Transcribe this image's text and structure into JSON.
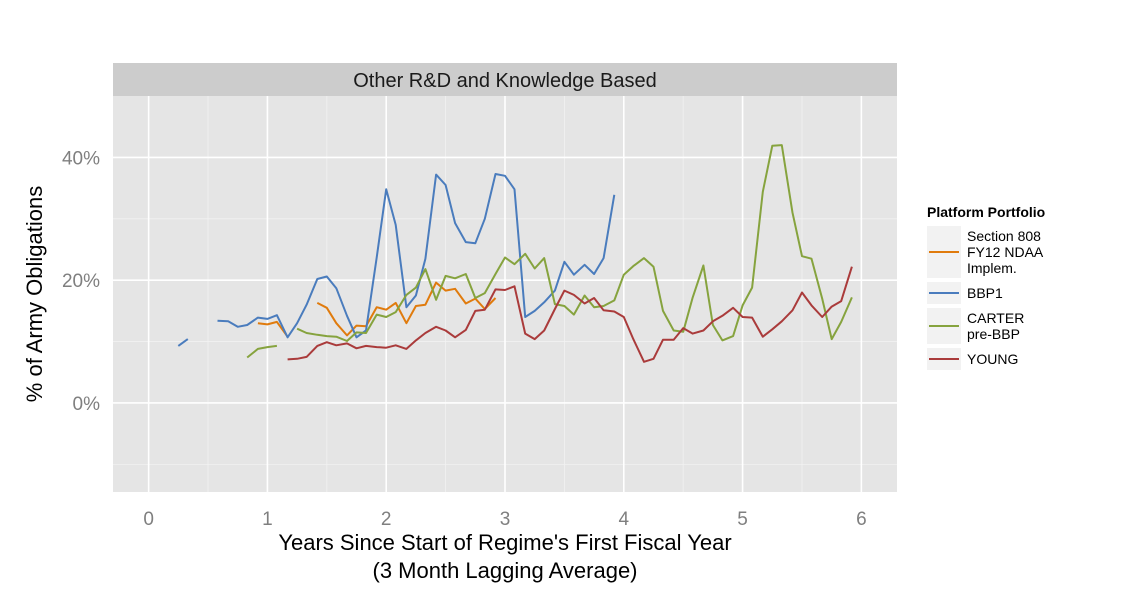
{
  "chart_data": {
    "type": "line",
    "facet_title": "Other R&D and Knowledge Based",
    "xlabel": [
      "Years Since Start of Regime's First Fiscal Year",
      "(3 Month Lagging Average)"
    ],
    "ylabel": "% of Army Obligations",
    "xlim": [
      -0.3,
      6.3
    ],
    "ylim": [
      -0.145,
      0.5
    ],
    "x_ticks": [
      0,
      1,
      2,
      3,
      4,
      5,
      6
    ],
    "x_tick_labels": [
      "0",
      "1",
      "2",
      "3",
      "4",
      "5",
      "6"
    ],
    "y_ticks": [
      0,
      0.2,
      0.4
    ],
    "y_tick_labels": [
      "0%",
      "20%",
      "40%"
    ],
    "grid": true,
    "legend": {
      "title": "Platform Portfolio",
      "placement": "right",
      "entries": [
        {
          "label_lines": [
            "Section 808",
            "FY12 NDAA",
            "Implem."
          ],
          "color": "#e07b0d"
        },
        {
          "label_lines": [
            "BBP1"
          ],
          "color": "#4a7cbd"
        },
        {
          "label_lines": [
            "CARTER",
            "pre-BBP"
          ],
          "color": "#86a33e"
        },
        {
          "label_lines": [
            "YOUNG"
          ],
          "color": "#aa3b3b"
        }
      ]
    },
    "series": [
      {
        "name": "Section 808 FY12 NDAA Implem.",
        "color": "#e07b0d",
        "segments": [
          [
            [
              0.92,
              0.13
            ],
            [
              1.0,
              0.128
            ],
            [
              1.08,
              0.132
            ],
            [
              1.17,
              0.108
            ]
          ],
          [
            [
              1.42,
              0.163
            ],
            [
              1.5,
              0.155
            ],
            [
              1.58,
              0.13
            ],
            [
              1.67,
              0.11
            ],
            [
              1.75,
              0.126
            ],
            [
              1.83,
              0.125
            ],
            [
              1.92,
              0.156
            ],
            [
              2.0,
              0.152
            ],
            [
              2.08,
              0.163
            ],
            [
              2.17,
              0.13
            ],
            [
              2.25,
              0.158
            ],
            [
              2.33,
              0.16
            ],
            [
              2.42,
              0.196
            ],
            [
              2.5,
              0.183
            ],
            [
              2.58,
              0.186
            ],
            [
              2.67,
              0.162
            ],
            [
              2.75,
              0.17
            ],
            [
              2.83,
              0.153
            ],
            [
              2.92,
              0.171
            ]
          ]
        ]
      },
      {
        "name": "BBP1",
        "color": "#4a7cbd",
        "segments": [
          [
            [
              0.25,
              0.093
            ],
            [
              0.33,
              0.104
            ]
          ],
          [
            [
              0.58,
              0.134
            ],
            [
              0.67,
              0.133
            ],
            [
              0.75,
              0.124
            ],
            [
              0.83,
              0.127
            ],
            [
              0.92,
              0.139
            ],
            [
              1.0,
              0.137
            ],
            [
              1.08,
              0.143
            ],
            [
              1.17,
              0.107
            ],
            [
              1.25,
              0.13
            ],
            [
              1.33,
              0.16
            ],
            [
              1.42,
              0.202
            ],
            [
              1.5,
              0.206
            ],
            [
              1.58,
              0.187
            ],
            [
              1.67,
              0.142
            ],
            [
              1.75,
              0.107
            ],
            [
              1.83,
              0.118
            ],
            [
              1.92,
              0.237
            ],
            [
              2.0,
              0.348
            ],
            [
              2.08,
              0.29
            ],
            [
              2.17,
              0.156
            ],
            [
              2.25,
              0.175
            ],
            [
              2.33,
              0.235
            ],
            [
              2.42,
              0.372
            ],
            [
              2.5,
              0.355
            ],
            [
              2.58,
              0.293
            ],
            [
              2.67,
              0.262
            ],
            [
              2.75,
              0.26
            ],
            [
              2.83,
              0.3
            ],
            [
              2.92,
              0.373
            ],
            [
              3.0,
              0.37
            ],
            [
              3.08,
              0.348
            ],
            [
              3.17,
              0.14
            ],
            [
              3.25,
              0.15
            ],
            [
              3.33,
              0.164
            ],
            [
              3.42,
              0.183
            ],
            [
              3.5,
              0.23
            ],
            [
              3.58,
              0.209
            ],
            [
              3.67,
              0.225
            ],
            [
              3.75,
              0.21
            ],
            [
              3.83,
              0.236
            ],
            [
              3.92,
              0.339
            ]
          ]
        ]
      },
      {
        "name": "CARTER pre-BBP",
        "color": "#86a33e",
        "segments": [
          [
            [
              0.83,
              0.074
            ],
            [
              0.92,
              0.088
            ],
            [
              1.0,
              0.091
            ],
            [
              1.08,
              0.093
            ]
          ],
          [
            [
              1.25,
              0.121
            ],
            [
              1.33,
              0.114
            ],
            [
              1.42,
              0.111
            ],
            [
              1.5,
              0.109
            ],
            [
              1.58,
              0.108
            ],
            [
              1.67,
              0.101
            ],
            [
              1.75,
              0.115
            ],
            [
              1.83,
              0.114
            ],
            [
              1.92,
              0.144
            ],
            [
              2.0,
              0.14
            ],
            [
              2.08,
              0.148
            ],
            [
              2.17,
              0.176
            ],
            [
              2.25,
              0.188
            ],
            [
              2.33,
              0.218
            ],
            [
              2.42,
              0.168
            ],
            [
              2.5,
              0.207
            ],
            [
              2.58,
              0.203
            ],
            [
              2.67,
              0.21
            ],
            [
              2.75,
              0.171
            ],
            [
              2.83,
              0.179
            ],
            [
              2.92,
              0.21
            ],
            [
              3.0,
              0.237
            ],
            [
              3.08,
              0.226
            ],
            [
              3.17,
              0.243
            ],
            [
              3.25,
              0.219
            ],
            [
              3.33,
              0.236
            ],
            [
              3.42,
              0.161
            ],
            [
              3.5,
              0.158
            ],
            [
              3.58,
              0.144
            ],
            [
              3.67,
              0.175
            ],
            [
              3.75,
              0.156
            ],
            [
              3.83,
              0.158
            ],
            [
              3.92,
              0.167
            ],
            [
              4.0,
              0.209
            ],
            [
              4.08,
              0.223
            ],
            [
              4.17,
              0.236
            ],
            [
              4.25,
              0.222
            ],
            [
              4.33,
              0.15
            ],
            [
              4.42,
              0.118
            ],
            [
              4.5,
              0.116
            ],
            [
              4.58,
              0.172
            ],
            [
              4.67,
              0.224
            ],
            [
              4.75,
              0.127
            ],
            [
              4.83,
              0.102
            ],
            [
              4.92,
              0.109
            ],
            [
              5.0,
              0.159
            ],
            [
              5.08,
              0.188
            ],
            [
              5.17,
              0.344
            ],
            [
              5.25,
              0.419
            ],
            [
              5.33,
              0.42
            ],
            [
              5.42,
              0.31
            ],
            [
              5.5,
              0.239
            ],
            [
              5.58,
              0.235
            ],
            [
              5.67,
              0.17
            ],
            [
              5.75,
              0.104
            ],
            [
              5.83,
              0.132
            ],
            [
              5.92,
              0.172
            ]
          ]
        ]
      },
      {
        "name": "YOUNG",
        "color": "#aa3b3b",
        "segments": [
          [
            [
              1.17,
              0.071
            ],
            [
              1.25,
              0.072
            ],
            [
              1.33,
              0.075
            ],
            [
              1.42,
              0.093
            ],
            [
              1.5,
              0.099
            ],
            [
              1.58,
              0.094
            ],
            [
              1.67,
              0.097
            ],
            [
              1.75,
              0.089
            ],
            [
              1.83,
              0.093
            ],
            [
              1.92,
              0.091
            ],
            [
              2.0,
              0.09
            ],
            [
              2.08,
              0.094
            ],
            [
              2.17,
              0.088
            ],
            [
              2.25,
              0.102
            ],
            [
              2.33,
              0.114
            ],
            [
              2.42,
              0.124
            ],
            [
              2.5,
              0.118
            ],
            [
              2.58,
              0.107
            ],
            [
              2.67,
              0.119
            ],
            [
              2.75,
              0.15
            ],
            [
              2.83,
              0.152
            ],
            [
              2.92,
              0.185
            ],
            [
              3.0,
              0.184
            ],
            [
              3.08,
              0.19
            ],
            [
              3.17,
              0.113
            ],
            [
              3.25,
              0.104
            ],
            [
              3.33,
              0.118
            ],
            [
              3.42,
              0.153
            ],
            [
              3.5,
              0.183
            ],
            [
              3.58,
              0.176
            ],
            [
              3.67,
              0.162
            ],
            [
              3.75,
              0.171
            ],
            [
              3.83,
              0.151
            ],
            [
              3.92,
              0.149
            ],
            [
              4.0,
              0.14
            ],
            [
              4.08,
              0.104
            ],
            [
              4.17,
              0.067
            ],
            [
              4.25,
              0.072
            ],
            [
              4.33,
              0.103
            ],
            [
              4.42,
              0.103
            ],
            [
              4.5,
              0.122
            ],
            [
              4.58,
              0.113
            ],
            [
              4.67,
              0.118
            ],
            [
              4.75,
              0.133
            ],
            [
              4.83,
              0.142
            ],
            [
              4.92,
              0.155
            ],
            [
              5.0,
              0.14
            ],
            [
              5.08,
              0.139
            ],
            [
              5.17,
              0.108
            ],
            [
              5.25,
              0.12
            ],
            [
              5.33,
              0.133
            ],
            [
              5.42,
              0.151
            ],
            [
              5.5,
              0.18
            ],
            [
              5.58,
              0.159
            ],
            [
              5.67,
              0.14
            ],
            [
              5.75,
              0.157
            ],
            [
              5.83,
              0.166
            ],
            [
              5.92,
              0.222
            ]
          ]
        ]
      }
    ]
  }
}
